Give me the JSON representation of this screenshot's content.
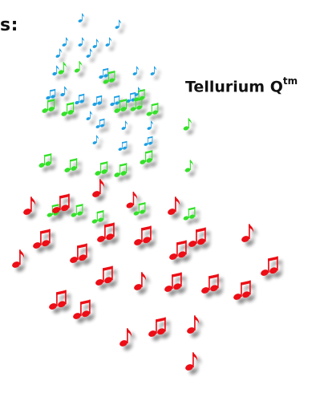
{
  "edge_text": "s:",
  "brand": {
    "name": "Tellurium Q",
    "mark": "tm"
  },
  "colors": {
    "blue": "#1e9fe3",
    "green": "#35e02a",
    "red": "#ec0c12",
    "shadow": "#9a9a9a"
  },
  "icons": [
    "eighth-note-icon",
    "beamed-notes-icon"
  ]
}
